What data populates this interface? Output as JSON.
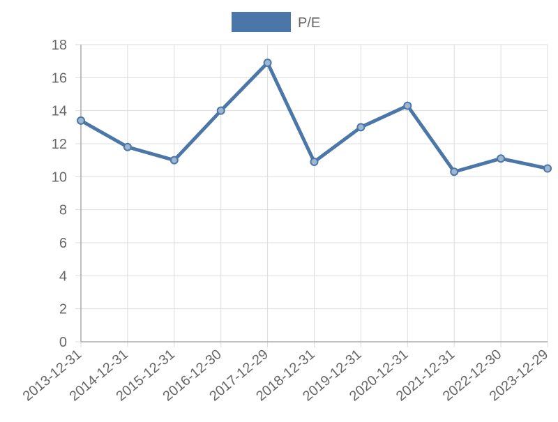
{
  "chart_data": {
    "type": "line",
    "categories": [
      "2013-12-31",
      "2014-12-31",
      "2015-12-31",
      "2016-12-30",
      "2017-12-29",
      "2018-12-31",
      "2019-12-31",
      "2020-12-31",
      "2021-12-31",
      "2022-12-30",
      "2023-12-29"
    ],
    "series": [
      {
        "name": "P/E",
        "color": "#4a76a8",
        "values": [
          13.4,
          11.8,
          11.0,
          14.0,
          16.9,
          10.9,
          13.0,
          14.3,
          10.3,
          11.1,
          10.5
        ]
      }
    ],
    "ylim": [
      0,
      18
    ],
    "yticks": [
      0,
      2,
      4,
      6,
      8,
      10,
      12,
      14,
      16,
      18
    ],
    "grid": true,
    "legend": "top"
  }
}
